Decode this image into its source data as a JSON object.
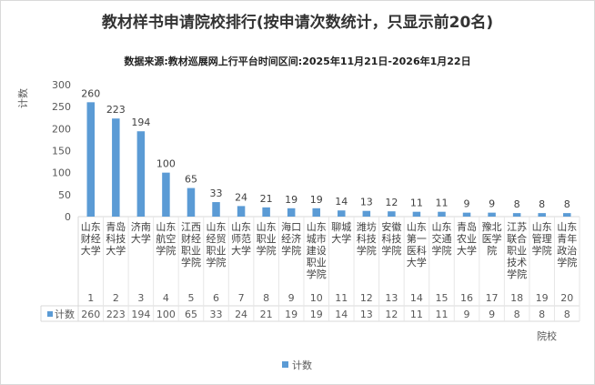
{
  "chart_data": {
    "type": "bar",
    "title": "教材样书申请院校排行(按申请次数统计，只显示前20名)",
    "subtitle": "数据来源:教材巡展网上行平台时间区间:2025年11月21日-2026年1月22日",
    "ylabel": "计数",
    "xlabel": "院校",
    "ylim": [
      0,
      300
    ],
    "yticks": [
      0,
      50,
      100,
      150,
      200,
      250,
      300
    ],
    "grid": false,
    "legend_position": "bottom",
    "bar_color": "#5b9bd5",
    "table_row_label": "计数",
    "categories": [
      [
        "山东",
        "财经",
        "大学"
      ],
      [
        "青岛",
        "科技",
        "大学"
      ],
      [
        "济南",
        "大学"
      ],
      [
        "山东",
        "航空",
        "学院"
      ],
      [
        "江西",
        "财经",
        "职业",
        "学院"
      ],
      [
        "山东",
        "经贸",
        "职业",
        "学院"
      ],
      [
        "山东",
        "师范",
        "大学"
      ],
      [
        "山东",
        "职业",
        "学院"
      ],
      [
        "海口",
        "经济",
        "学院"
      ],
      [
        "山东",
        "城市",
        "建设",
        "职业",
        "学院"
      ],
      [
        "聊城",
        "大学"
      ],
      [
        "潍坊",
        "科技",
        "学院"
      ],
      [
        "安徽",
        "科技",
        "学院"
      ],
      [
        "山东",
        "第一",
        "医科",
        "大学"
      ],
      [
        "山东",
        "交通",
        "学院"
      ],
      [
        "青岛",
        "农业",
        "大学"
      ],
      [
        "豫北",
        "医学",
        "院"
      ],
      [
        "江苏",
        "联合",
        "职业",
        "技术",
        "学院"
      ],
      [
        "山东",
        "管理",
        "学院"
      ],
      [
        "山东",
        "青年",
        "政治",
        "学院"
      ]
    ],
    "ranks": [
      "1",
      "2",
      "3",
      "4",
      "5",
      "6",
      "7",
      "8",
      "9",
      "10",
      "11",
      "12",
      "13",
      "14",
      "15",
      "16",
      "17",
      "18",
      "19",
      "20"
    ],
    "series": [
      {
        "name": "计数",
        "values": [
          260,
          223,
          194,
          100,
          65,
          33,
          24,
          21,
          19,
          19,
          14,
          13,
          12,
          11,
          11,
          9,
          9,
          8,
          8,
          8
        ]
      }
    ]
  }
}
